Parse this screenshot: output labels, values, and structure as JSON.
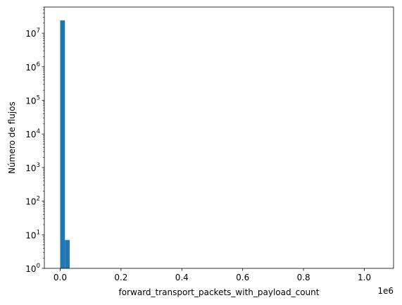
{
  "chart_data": {
    "type": "bar",
    "subtype": "histogram",
    "title": "",
    "xlabel": "forward_transport_packets_with_payload_count",
    "ylabel": "Número de flujos",
    "x_offset_label": "1e6",
    "xscale": "linear",
    "yscale": "log",
    "xlim": [
      -0.052,
      1.096
    ],
    "ylim": [
      1,
      60000000
    ],
    "x_ticks": [
      {
        "value": 0.0,
        "label": "0.0"
      },
      {
        "value": 0.2,
        "label": "0.2"
      },
      {
        "value": 0.4,
        "label": "0.4"
      },
      {
        "value": 0.6,
        "label": "0.6"
      },
      {
        "value": 0.8,
        "label": "0.8"
      },
      {
        "value": 1.0,
        "label": "1.0"
      }
    ],
    "y_ticks": [
      {
        "value": 1,
        "base": "10",
        "exp": "0"
      },
      {
        "value": 10,
        "base": "10",
        "exp": "1"
      },
      {
        "value": 100,
        "base": "10",
        "exp": "2"
      },
      {
        "value": 1000,
        "base": "10",
        "exp": "3"
      },
      {
        "value": 10000,
        "base": "10",
        "exp": "4"
      },
      {
        "value": 100000,
        "base": "10",
        "exp": "5"
      },
      {
        "value": 1000000,
        "base": "10",
        "exp": "6"
      },
      {
        "value": 10000000,
        "base": "10",
        "exp": "7"
      }
    ],
    "bins": [
      {
        "x0": 0.0,
        "x1": 0.0156,
        "count": 24000000
      },
      {
        "x0": 0.0156,
        "x1": 0.0312,
        "count": 7
      }
    ],
    "color": "#1f77b4",
    "grid": false,
    "legend": "none"
  }
}
